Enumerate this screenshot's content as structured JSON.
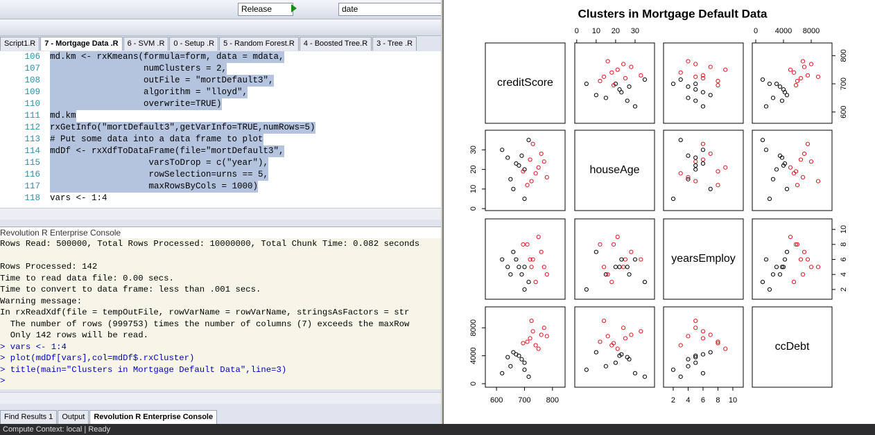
{
  "toolbar": {
    "config": "Release",
    "target": "date"
  },
  "tabs": [
    "Script1.R",
    "7 - Mortgage Data .R",
    "6 - SVM .R",
    "0 - Setup .R",
    "5 - Random Forest.R",
    "4 - Boosted Tree.R",
    "3 - Tree .R"
  ],
  "code": [
    {
      "num": 106,
      "text": "md.km <- rxKmeans(formula=form, data = mdata,"
    },
    {
      "num": 107,
      "text": "                  numClusters = 2,"
    },
    {
      "num": 108,
      "text": "                  outFile = \"mortDefault3\","
    },
    {
      "num": 109,
      "text": "                  algorithm = \"lloyd\","
    },
    {
      "num": 110,
      "text": "                  overwrite=TRUE)"
    },
    {
      "num": 111,
      "text": "md.km"
    },
    {
      "num": 112,
      "text": "rxGetInfo(\"mortDefault3\",getVarInfo=TRUE,numRows=5)"
    },
    {
      "num": 113,
      "text": "# Put some data into a data frame to plot"
    },
    {
      "num": 114,
      "text": "mdDf <- rxXdfToDataFrame(file=\"mortDefault3\","
    },
    {
      "num": 115,
      "text": "                   varsToDrop = c(\"year\"),"
    },
    {
      "num": 116,
      "text": "                   rowSelection=urns == 5,"
    },
    {
      "num": 117,
      "text": "                   maxRowsByCols = 1000)"
    },
    {
      "num": 118,
      "text": "vars <- 1:4"
    }
  ],
  "console": {
    "title": "Revolution R Enterprise Console",
    "lines": [
      "Rows Read: 500000, Total Rows Processed: 10000000, Total Chunk Time: 0.082 seconds",
      "Rows Processed: 142",
      "Time to read data file: 0.00 secs.",
      "Time to convert to data frame: less than .001 secs.",
      "Warning message:",
      "In rxReadXdf(file = tempOutFile, rowVarName = rowVarName, stringsAsFactors = str",
      "  The number of rows (999753) times the number of columns (7) exceeds the maxRow",
      "  Only 142 rows will be read.",
      "> vars <- 1:4",
      "> plot(mdDf[vars],col=mdDf$.rxCluster)",
      "> title(main=\"Clusters in Mortgage Default Data\",line=3)",
      ">"
    ]
  },
  "bottom_tabs": [
    "Find Results 1",
    "Output",
    "Revolution R Enterprise Console"
  ],
  "status": {
    "context": "Compute Context: local",
    "state": "Ready"
  },
  "chart_data": {
    "type": "scatter-matrix",
    "title": "Clusters in Mortgage Default Data",
    "cluster_colors": [
      "#000000",
      "#e8141e"
    ],
    "cluster": [
      1,
      2,
      1,
      2,
      1,
      2,
      1,
      2,
      1,
      2,
      1,
      2,
      1,
      2,
      1,
      2,
      1,
      2,
      1,
      2
    ],
    "variables": [
      {
        "name": "creditScore",
        "lim": [
          560,
          845
        ],
        "ticks": [
          600,
          700,
          800
        ],
        "values": [
          700,
          720,
          650,
          760,
          680,
          740,
          620,
          710,
          690,
          770,
          660,
          730,
          700,
          750,
          640,
          780,
          715,
          695,
          670,
          725
        ]
      },
      {
        "name": "houseAge",
        "lim": [
          -1,
          40
        ],
        "ticks": [
          0,
          10,
          20,
          30
        ],
        "values": [
          20,
          25,
          15,
          28,
          22,
          18,
          30,
          12,
          27,
          24,
          10,
          33,
          5,
          21,
          26,
          16,
          35,
          19,
          23,
          14
        ]
      },
      {
        "name": "yearsEmploy",
        "lim": [
          0.7,
          11.4
        ],
        "ticks": [
          2,
          4,
          6,
          8,
          10
        ],
        "values": [
          5,
          6,
          4,
          7,
          5,
          3,
          6,
          8,
          4,
          5,
          7,
          6,
          2,
          9,
          5,
          4,
          3,
          8,
          6,
          5
        ]
      },
      {
        "name": "ccDebt",
        "lim": [
          -500,
          11000
        ],
        "ticks": [
          0,
          4000,
          8000
        ],
        "values": [
          3000,
          6500,
          2500,
          7000,
          4000,
          5500,
          1500,
          6000,
          3500,
          8000,
          4500,
          7500,
          2000,
          5000,
          3800,
          6800,
          1000,
          5800,
          4200,
          9000
        ]
      }
    ]
  }
}
